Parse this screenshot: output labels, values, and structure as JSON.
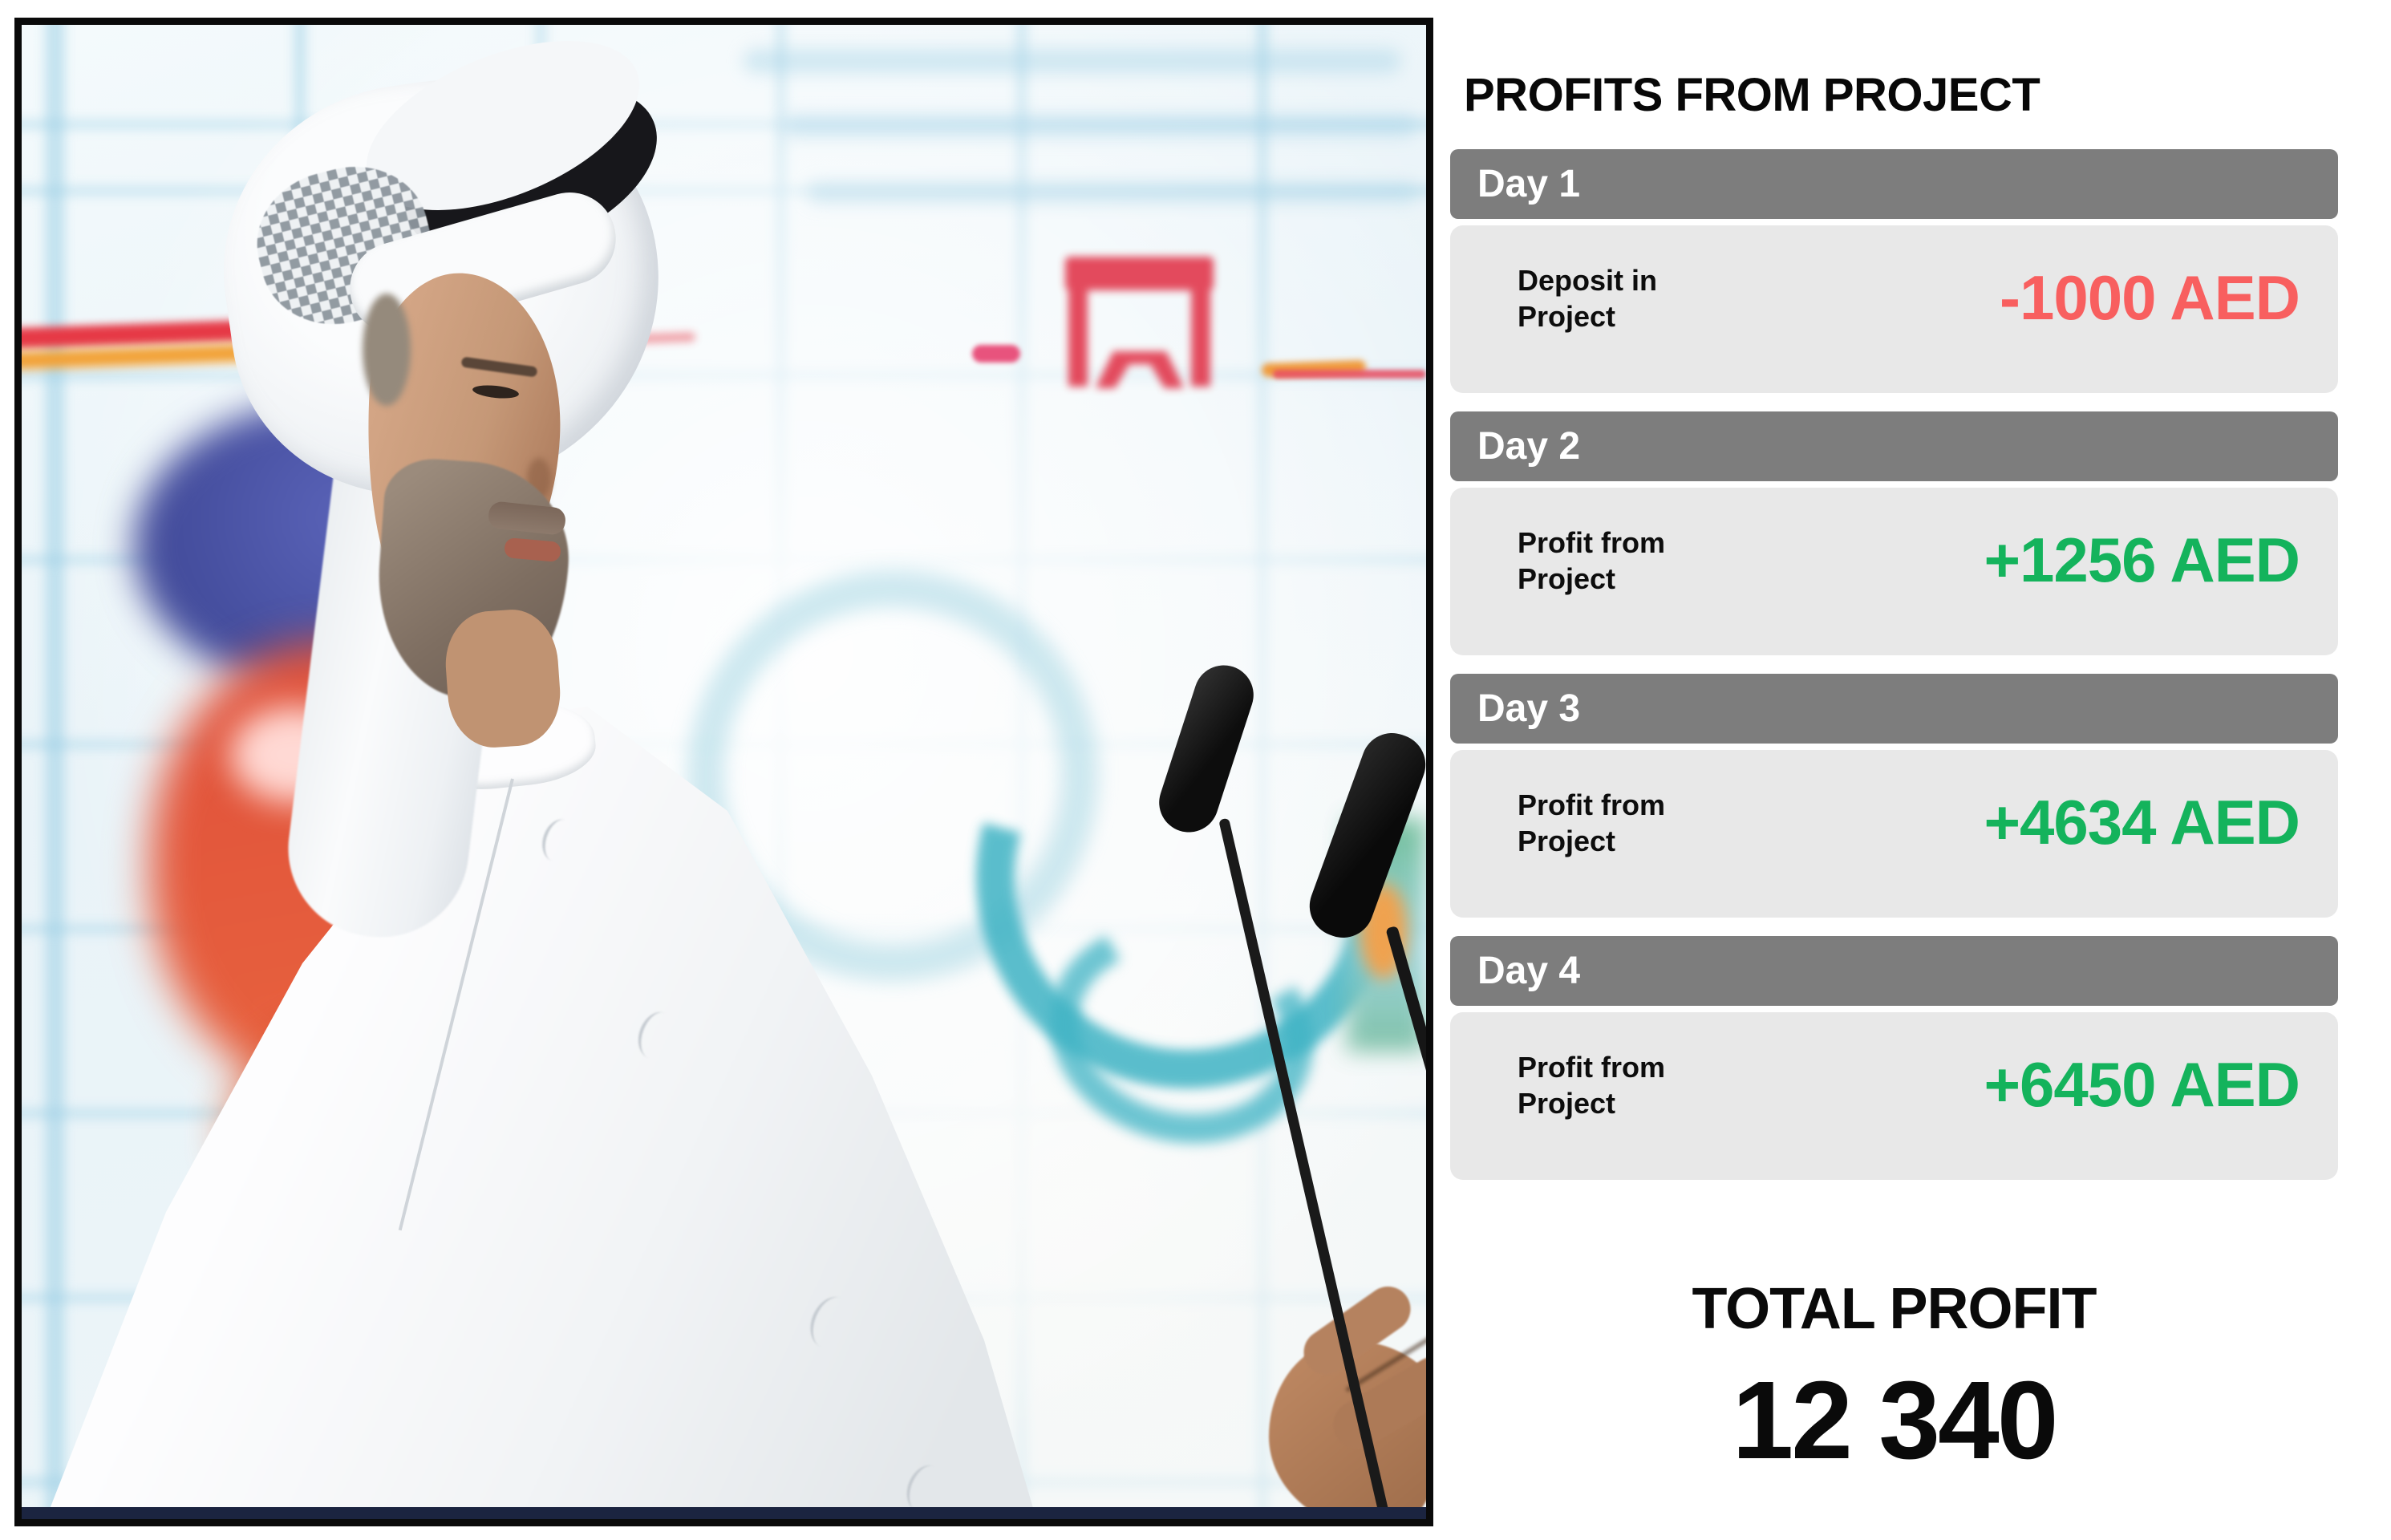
{
  "panel": {
    "title": "PROFITS FROM PROJECT",
    "days": [
      {
        "header": "Day 1",
        "label_line1": "Deposit in",
        "label_line2": "Project",
        "value": "-1000 AED",
        "type": "negative"
      },
      {
        "header": "Day 2",
        "label_line1": "Profit from",
        "label_line2": "Project",
        "value": "+1256 AED",
        "type": "positive"
      },
      {
        "header": "Day 3",
        "label_line1": "Profit from",
        "label_line2": "Project",
        "value": "+4634 AED",
        "type": "positive"
      },
      {
        "header": "Day 4",
        "label_line1": "Profit from",
        "label_line2": "Project",
        "value": "+6450 AED",
        "type": "positive"
      }
    ],
    "total": {
      "label": "TOTAL PROFIT",
      "value": "12 340"
    }
  },
  "colors": {
    "negative": "#f85f5f",
    "positive": "#14b35c",
    "day_header_bg": "#7d7d7d",
    "card_body_bg": "#e8e8e8",
    "frame_border": "#0a0a0a"
  },
  "photo": {
    "description": "Man in white Emirati kandura and ghutra headdress speaking at two microphones before a colorful blurred backdrop"
  }
}
